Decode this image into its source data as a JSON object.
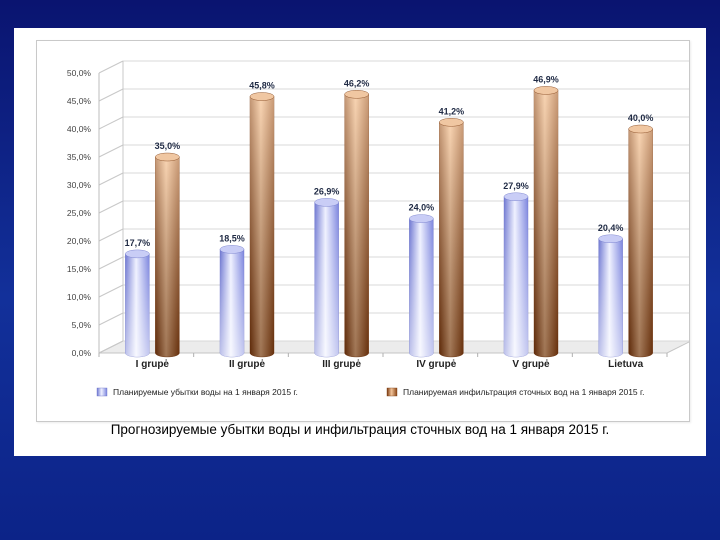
{
  "caption": "Прогнозируемые убытки воды и инфильтрация сточных вод на 1 января 2015 г.",
  "chart_data": {
    "type": "bar",
    "categories": [
      "I grupė",
      "II grupė",
      "III grupė",
      "IV grupė",
      "V grupė",
      "Lietuva"
    ],
    "series": [
      {
        "name": "Планируемые убытки воды на 1 января 2015 г.",
        "values": [
          17.7,
          18.5,
          26.9,
          24.0,
          27.9,
          20.4
        ],
        "labels": [
          "17,7%",
          "18,5%",
          "26,9%",
          "24,0%",
          "27,9%",
          "20,4%"
        ],
        "color": "#8c95e6"
      },
      {
        "name": "Планируемая инфильтрация сточных вод на 1 января 2015 г.",
        "values": [
          35.0,
          45.8,
          46.2,
          41.2,
          46.9,
          40.0
        ],
        "labels": [
          "35,0%",
          "45,8%",
          "46,2%",
          "41,2%",
          "46,9%",
          "40,0%"
        ],
        "color": "#b8652c"
      }
    ],
    "ylim": [
      0,
      50
    ],
    "yticks": [
      "0,0%",
      "5,0%",
      "10,0%",
      "15,0%",
      "20,0%",
      "25,0%",
      "30,0%",
      "35,0%",
      "40,0%",
      "45,0%",
      "50,0%"
    ],
    "grid": true,
    "legend_position": "bottom",
    "title": "",
    "xlabel": "",
    "ylabel": ""
  }
}
